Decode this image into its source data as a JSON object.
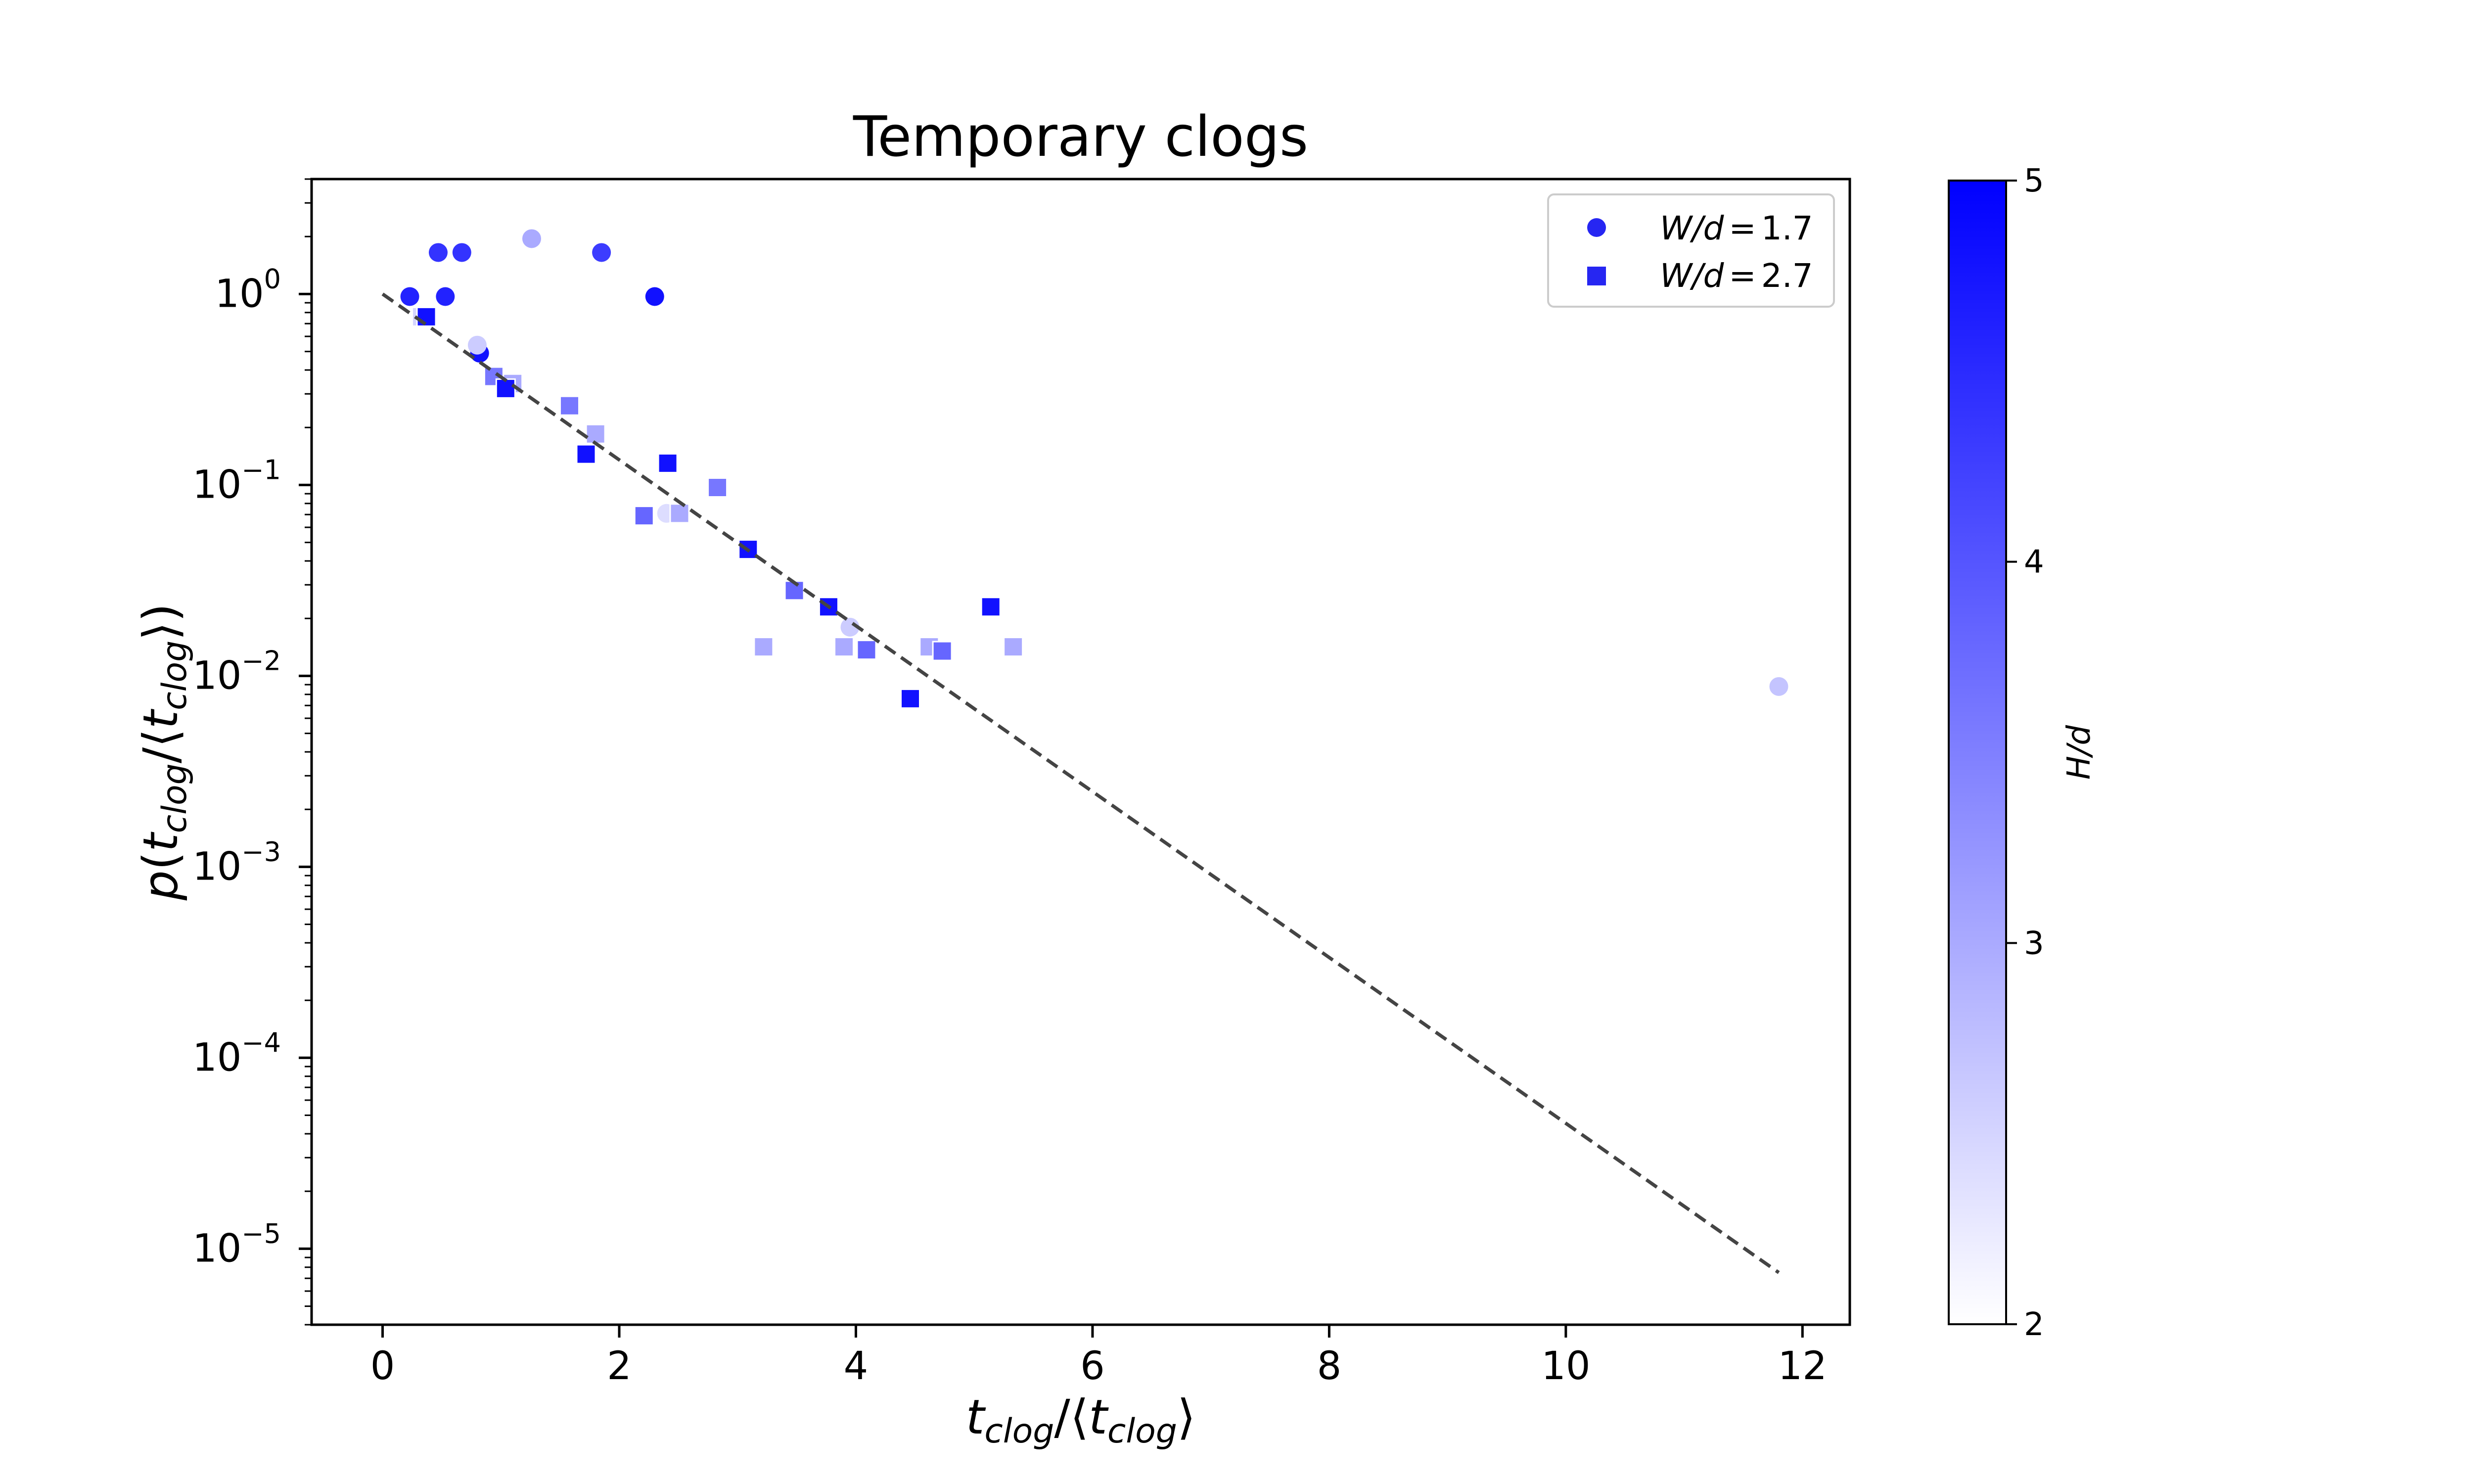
{
  "chart_data": {
    "type": "scatter",
    "title": "Temporary clogs",
    "xlabel": "t_clog/⟨t_clog⟩",
    "ylabel": "p(t_clog/⟨t_clog⟩)",
    "x_scale": "linear",
    "y_scale": "log",
    "xlim": [
      -0.6,
      12.4
    ],
    "ylim": [
      4e-06,
      4
    ],
    "x_ticks": [
      0,
      2,
      4,
      6,
      8,
      10,
      12
    ],
    "x_tick_labels": [
      "0",
      "2",
      "4",
      "6",
      "8",
      "10",
      "12"
    ],
    "y_ticks": [
      1,
      0.1,
      0.01,
      0.001,
      0.0001,
      1e-05
    ],
    "y_tick_labels": [
      {
        "base": "10",
        "exp": "0"
      },
      {
        "base": "10",
        "exp": "−1"
      },
      {
        "base": "10",
        "exp": "−2"
      },
      {
        "base": "10",
        "exp": "−3"
      },
      {
        "base": "10",
        "exp": "−4"
      },
      {
        "base": "10",
        "exp": "−5"
      }
    ],
    "grid": false,
    "legend_position": "top-right",
    "colorbar": {
      "label": "H/d",
      "range": [
        2,
        5
      ],
      "ticks": [
        2,
        3,
        4,
        5
      ],
      "colors": {
        "low": "#ffffff",
        "high": "#0000ff"
      }
    },
    "fit_line": {
      "style": "dashed",
      "color": "#444444",
      "x": [
        0.0,
        11.8
      ],
      "y": [
        1.0,
        7.5e-06
      ]
    },
    "series": [
      {
        "name": "W/d = 1.7",
        "name_label": {
          "var": "W/d",
          "op": "=",
          "val": "1.7"
        },
        "marker": "circle",
        "legend_color": "#2626f2",
        "points": [
          {
            "x": 0.23,
            "y": 0.97,
            "h": 4.6
          },
          {
            "x": 0.47,
            "y": 1.65,
            "h": 4.4
          },
          {
            "x": 0.53,
            "y": 0.97,
            "h": 4.6
          },
          {
            "x": 0.67,
            "y": 1.65,
            "h": 4.4
          },
          {
            "x": 0.82,
            "y": 0.49,
            "h": 4.8
          },
          {
            "x": 0.8,
            "y": 0.54,
            "h": 2.6
          },
          {
            "x": 1.26,
            "y": 1.95,
            "h": 3.0
          },
          {
            "x": 1.85,
            "y": 1.65,
            "h": 4.3
          },
          {
            "x": 2.3,
            "y": 0.97,
            "h": 4.8
          },
          {
            "x": 2.4,
            "y": 0.071,
            "h": 2.4
          },
          {
            "x": 3.95,
            "y": 0.018,
            "h": 2.6
          },
          {
            "x": 11.8,
            "y": 0.0088,
            "h": 2.7
          }
        ]
      },
      {
        "name": "W/d = 2.7",
        "name_label": {
          "var": "W/d",
          "op": "=",
          "val": "2.7"
        },
        "marker": "square",
        "legend_color": "#2626f2",
        "points": [
          {
            "x": 0.33,
            "y": 0.76,
            "h": 2.5
          },
          {
            "x": 0.37,
            "y": 0.76,
            "h": 4.8
          },
          {
            "x": 0.94,
            "y": 0.37,
            "h": 3.6
          },
          {
            "x": 1.1,
            "y": 0.34,
            "h": 3.0
          },
          {
            "x": 1.04,
            "y": 0.32,
            "h": 4.8
          },
          {
            "x": 1.58,
            "y": 0.26,
            "h": 3.6
          },
          {
            "x": 1.8,
            "y": 0.185,
            "h": 3.0
          },
          {
            "x": 1.72,
            "y": 0.145,
            "h": 4.8
          },
          {
            "x": 2.41,
            "y": 0.13,
            "h": 4.8
          },
          {
            "x": 2.83,
            "y": 0.097,
            "h": 3.6
          },
          {
            "x": 2.21,
            "y": 0.069,
            "h": 3.8
          },
          {
            "x": 2.51,
            "y": 0.071,
            "h": 3.0
          },
          {
            "x": 3.09,
            "y": 0.046,
            "h": 4.8
          },
          {
            "x": 3.48,
            "y": 0.028,
            "h": 3.8
          },
          {
            "x": 3.77,
            "y": 0.023,
            "h": 4.8
          },
          {
            "x": 3.22,
            "y": 0.0142,
            "h": 3.0
          },
          {
            "x": 3.9,
            "y": 0.0142,
            "h": 3.0
          },
          {
            "x": 4.09,
            "y": 0.0137,
            "h": 3.8
          },
          {
            "x": 4.62,
            "y": 0.0142,
            "h": 3.0
          },
          {
            "x": 4.73,
            "y": 0.0135,
            "h": 3.8
          },
          {
            "x": 4.46,
            "y": 0.0076,
            "h": 4.8
          },
          {
            "x": 5.14,
            "y": 0.023,
            "h": 4.8
          },
          {
            "x": 5.33,
            "y": 0.0142,
            "h": 3.0
          }
        ]
      }
    ]
  }
}
